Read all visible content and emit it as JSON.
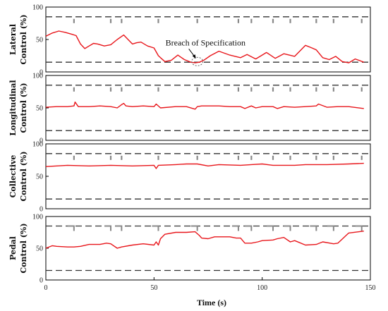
{
  "chart_data": {
    "type": "line",
    "colors": {
      "trace": "#e8161b",
      "limit": "#333333",
      "marker": "#888888",
      "axis": "#000000"
    },
    "xlabel": "Time (s)",
    "xlim": [
      0,
      150
    ],
    "x_ticks": [
      "0",
      "50",
      "100",
      "150"
    ],
    "y_ticks": [
      "0",
      "50",
      "100"
    ],
    "spec_limits": [
      15,
      85
    ],
    "annotation": {
      "text": "Breach of Specification",
      "panel": 0,
      "x": 70,
      "y": 16
    },
    "panels": [
      {
        "ylabel_lines": [
          "Lateral",
          "Control (%)"
        ],
        "ylim": [
          0,
          100
        ],
        "x": [
          0,
          3,
          6,
          9,
          12,
          14,
          16,
          18,
          20,
          22,
          24,
          27,
          30,
          33,
          36,
          38,
          40,
          42,
          44,
          47,
          50,
          51,
          52,
          53,
          55,
          58,
          61,
          64,
          67,
          69,
          71,
          73,
          76,
          80,
          85,
          90,
          93,
          97,
          102,
          106,
          110,
          115,
          120,
          123,
          125,
          128,
          131,
          134,
          137,
          140,
          143,
          147
        ],
        "values": [
          55,
          60,
          63,
          61,
          58,
          56,
          43,
          36,
          40,
          44,
          43,
          40,
          42,
          50,
          57,
          50,
          43,
          45,
          46,
          40,
          37,
          31,
          25,
          22,
          16,
          18,
          26,
          19,
          15,
          14,
          15,
          18,
          25,
          32,
          26,
          22,
          27,
          20,
          30,
          21,
          28,
          24,
          41,
          37,
          34,
          22,
          19,
          24,
          16,
          14,
          20,
          15
        ],
        "markers": [
          13,
          30,
          35,
          52,
          70,
          89,
          95,
          105,
          113,
          125,
          133,
          146
        ]
      },
      {
        "ylabel_lines": [
          "Longitudinal",
          "Control (%)"
        ],
        "ylim": [
          0,
          100
        ],
        "x": [
          0,
          5,
          10,
          13,
          13.5,
          15,
          20,
          25,
          30,
          33,
          35,
          36,
          37,
          40,
          45,
          50,
          51,
          53,
          60,
          65,
          69,
          70,
          72,
          80,
          85,
          90,
          92,
          95,
          97,
          100,
          105,
          107,
          110,
          115,
          120,
          125,
          126,
          130,
          135,
          140,
          147
        ],
        "values": [
          51,
          52,
          52,
          53,
          59,
          52,
          52,
          53,
          52,
          50,
          55,
          57,
          53,
          52,
          53,
          52,
          56,
          50,
          52,
          52,
          48,
          52,
          53,
          53,
          52,
          52,
          49,
          53,
          50,
          52,
          52,
          49,
          52,
          51,
          52,
          53,
          56,
          51,
          52,
          52,
          49
        ],
        "markers": [
          13,
          30,
          35,
          52,
          70,
          89,
          95,
          105,
          113,
          125,
          133,
          146
        ]
      },
      {
        "ylabel_lines": [
          "Collective",
          "Control (%)"
        ],
        "ylim": [
          0,
          100
        ],
        "x": [
          0,
          10,
          20,
          30,
          40,
          50,
          51,
          52,
          60,
          65,
          70,
          75,
          80,
          90,
          95,
          100,
          105,
          110,
          115,
          120,
          125,
          130,
          140,
          147
        ],
        "values": [
          65,
          67,
          66,
          67,
          66,
          67,
          62,
          67,
          68,
          69,
          69,
          66,
          68,
          67,
          68,
          69,
          67,
          67,
          67,
          68,
          68,
          68,
          69,
          70
        ],
        "markers": [
          13,
          30,
          35,
          52,
          70,
          89,
          95,
          105,
          113,
          125,
          133,
          146
        ]
      },
      {
        "ylabel_lines": [
          "Pedal",
          "Control (%)"
        ],
        "ylim": [
          0,
          100
        ],
        "x": [
          0,
          3,
          5,
          10,
          13,
          16,
          20,
          25,
          28,
          30,
          33,
          35,
          40,
          45,
          50,
          51,
          52,
          53,
          55,
          60,
          65,
          69,
          71,
          72,
          75,
          78,
          80,
          85,
          88,
          90,
          92,
          95,
          98,
          100,
          105,
          107,
          110,
          113,
          115,
          120,
          125,
          128,
          133,
          135,
          140,
          147
        ],
        "values": [
          50,
          54,
          53,
          52,
          52,
          53,
          56,
          56,
          58,
          57,
          50,
          52,
          55,
          57,
          55,
          60,
          55,
          65,
          72,
          75,
          75,
          76,
          70,
          66,
          65,
          68,
          68,
          68,
          66,
          66,
          58,
          58,
          60,
          62,
          63,
          65,
          67,
          60,
          62,
          55,
          56,
          60,
          57,
          58,
          74,
          77
        ],
        "markers": [
          13,
          30,
          35,
          52,
          70,
          89,
          95,
          105,
          113,
          125,
          133,
          146
        ],
        "marker_style": "step"
      }
    ]
  }
}
